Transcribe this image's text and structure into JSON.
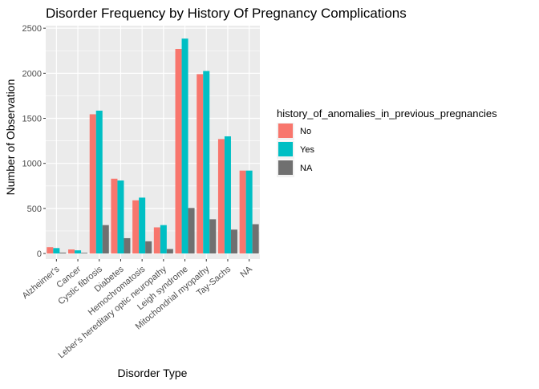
{
  "chart_data": {
    "type": "bar",
    "title": "Disorder Frequency by History Of Pregnancy Complications",
    "xlabel": "Disorder Type",
    "ylabel": "Number of Observation",
    "ylim": [
      0,
      2500
    ],
    "yticks": [
      0,
      500,
      1000,
      1500,
      2000,
      2500
    ],
    "grid": true,
    "legend_title": "history_of_anomalies_in_previous_pregnancies",
    "legend_position": "right",
    "categories": [
      "Alzheimer's",
      "Cancer",
      "Cystic fibrosis",
      "Diabetes",
      "Hemochromatosis",
      "Leber's hereditary optic neuropathy",
      "Leigh syndrome",
      "Mitochondrial myopathy",
      "Tay-Sachs",
      "NA"
    ],
    "series": [
      {
        "name": "No",
        "color": "#F8766D",
        "values": [
          70,
          45,
          1545,
          830,
          590,
          290,
          2270,
          1990,
          1270,
          920
        ]
      },
      {
        "name": "Yes",
        "color": "#00BFC4",
        "values": [
          60,
          35,
          1585,
          810,
          620,
          315,
          2385,
          2025,
          1300,
          920
        ]
      },
      {
        "name": "NA",
        "color": "#707070",
        "values": [
          10,
          8,
          315,
          170,
          135,
          50,
          505,
          380,
          265,
          325
        ]
      }
    ]
  }
}
